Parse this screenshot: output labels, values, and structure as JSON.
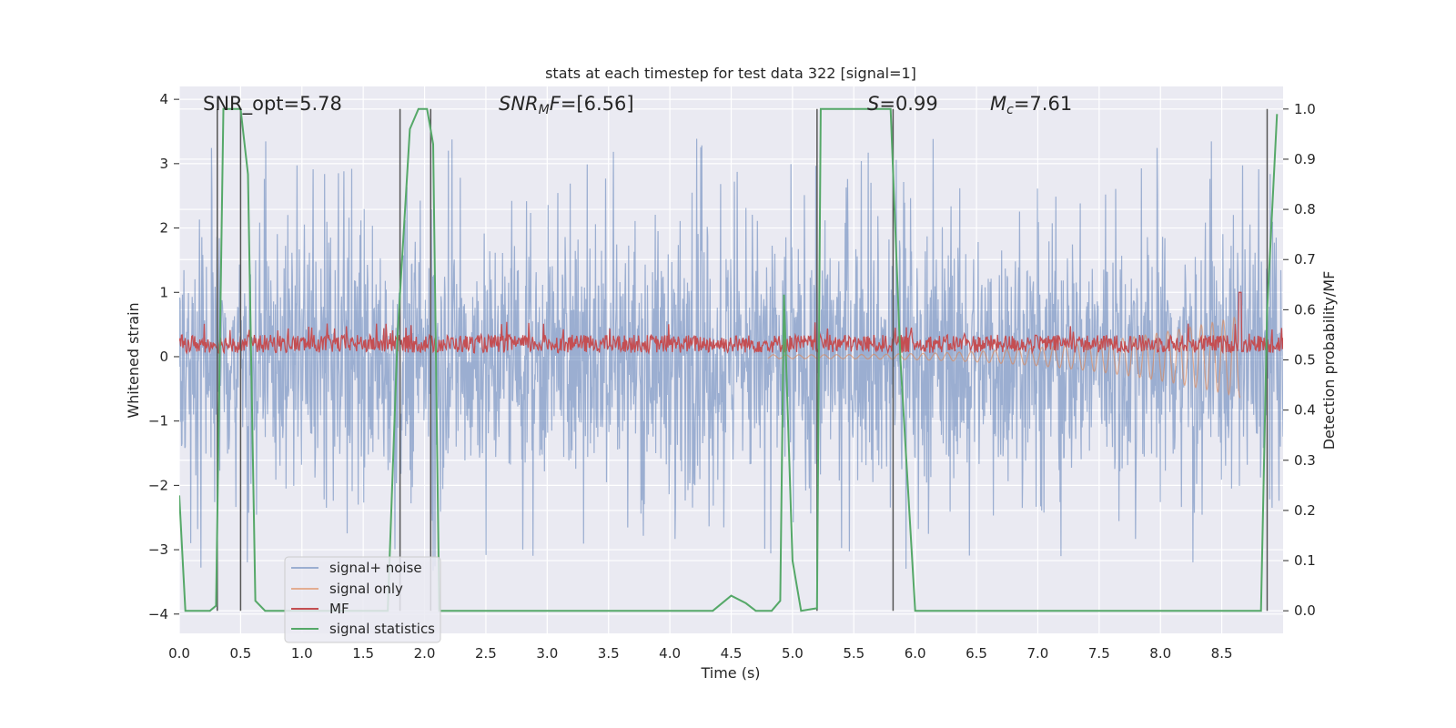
{
  "chart_data": {
    "type": "line",
    "title": "stats at each timestep for test data 322 [signal=1]",
    "xlabel": "Time (s)",
    "ylabel_left": "Whitened strain",
    "ylabel_right": "Detection probability/MF",
    "xlim": [
      0.0,
      9.0
    ],
    "ylim_left": [
      -4.3,
      4.2
    ],
    "ylim_right": [
      -0.045,
      1.045
    ],
    "x_ticks": [
      "0.0",
      "0.5",
      "1.0",
      "1.5",
      "2.0",
      "2.5",
      "3.0",
      "3.5",
      "4.0",
      "4.5",
      "5.0",
      "5.5",
      "6.0",
      "6.5",
      "7.0",
      "7.5",
      "8.0",
      "8.5"
    ],
    "y_ticks_left": [
      "4",
      "3",
      "2",
      "1",
      "0",
      "−1",
      "−2",
      "−3",
      "−4"
    ],
    "y_ticks_right": [
      "1.0",
      "0.9",
      "0.8",
      "0.7",
      "0.6",
      "0.5",
      "0.4",
      "0.3",
      "0.2",
      "0.1",
      "0.0"
    ],
    "grid": true,
    "annotations": {
      "snr_opt": "SNR_opt=5.78",
      "snr_mf": "=[6.56]",
      "snr_mf_symbol": "SNR",
      "snr_mf_sub": "M",
      "snr_mf_tail": "F",
      "s_symbol": "S",
      "s_value": "=0.99",
      "mc_symbol": "M",
      "mc_sub": "c",
      "mc_value": "=7.61"
    },
    "legend": {
      "placement": "lower-left",
      "entries": [
        "signal+ noise",
        "signal only",
        "MF",
        "signal statistics"
      ]
    },
    "vertical_markers_s": [
      0.31,
      0.5,
      1.8,
      2.05,
      5.2,
      5.82,
      8.87
    ],
    "series": [
      {
        "name": "signal statistics",
        "axis": "right",
        "x": [
          0.0,
          0.05,
          0.25,
          0.3,
          0.36,
          0.5,
          0.56,
          0.62,
          0.7,
          1.7,
          1.78,
          1.88,
          1.95,
          2.02,
          2.07,
          2.12,
          4.35,
          4.5,
          4.62,
          4.7,
          4.83,
          4.9,
          4.93,
          5.0,
          5.07,
          5.2,
          5.23,
          5.8,
          5.88,
          6.0,
          8.82,
          8.87,
          8.95
        ],
        "values": [
          0.23,
          0.0,
          0.0,
          0.01,
          1.0,
          1.0,
          0.87,
          0.02,
          0.0,
          0.0,
          0.55,
          0.96,
          1.0,
          1.0,
          0.93,
          0.0,
          0.0,
          0.03,
          0.015,
          0.0,
          0.0,
          0.02,
          0.63,
          0.1,
          0.0,
          0.005,
          1.0,
          1.0,
          0.5,
          0.0,
          0.0,
          0.6,
          0.99
        ]
      },
      {
        "name": "signal+ noise",
        "axis": "left",
        "noise_amplitude": 2.5,
        "x_range": [
          0.0,
          9.0
        ]
      },
      {
        "name": "MF",
        "axis": "left",
        "baseline": 0.2,
        "spike": {
          "x": 8.65,
          "y": 1.0
        },
        "x_range": [
          0.0,
          9.0
        ]
      },
      {
        "name": "signal only",
        "axis": "left",
        "chirp_start": 4.8,
        "chirp_end": 8.65,
        "envelope_max": 0.6
      }
    ]
  }
}
